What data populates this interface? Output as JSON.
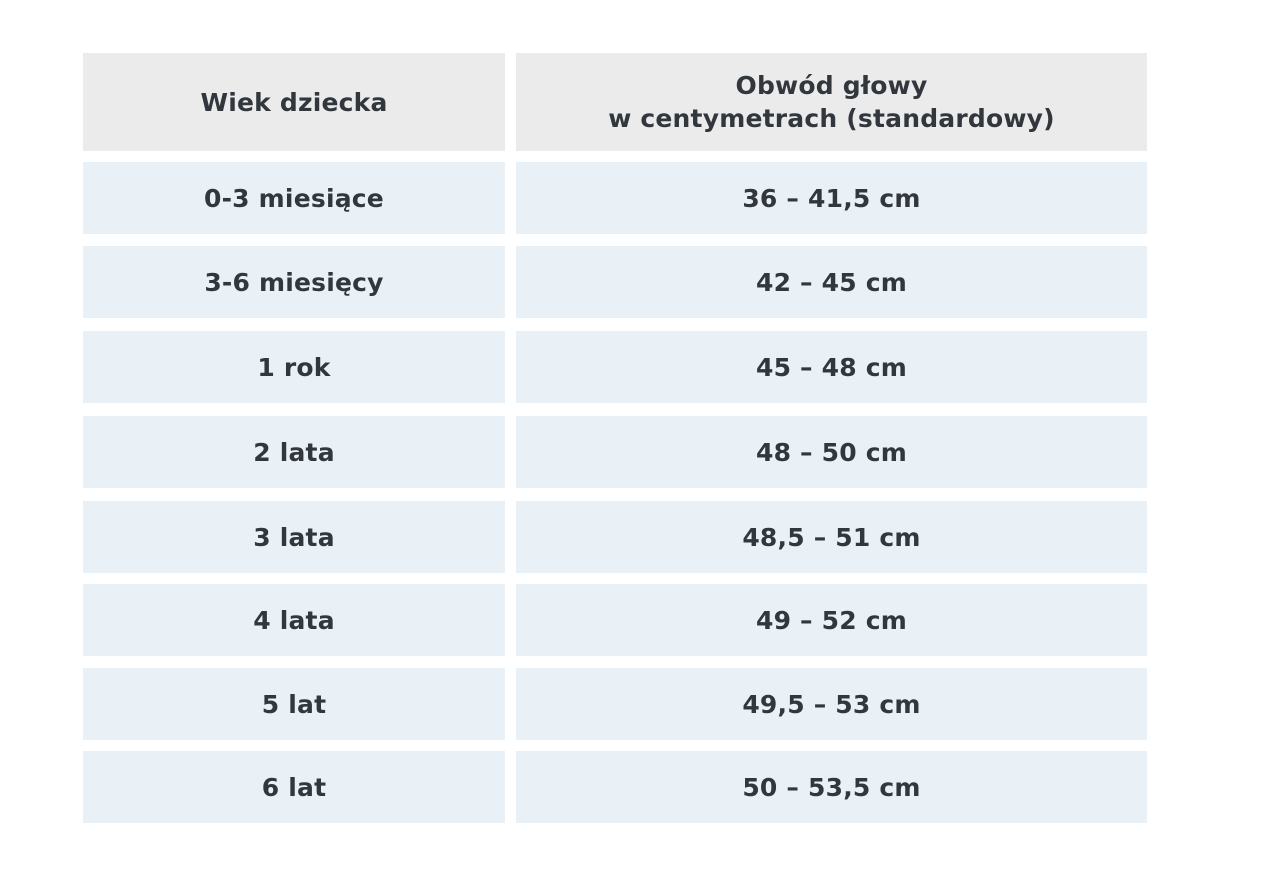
{
  "table": {
    "headers": [
      "Wiek dziecka",
      "Obwód głowy\nw centymetrach (standardowy)"
    ],
    "header_line1": "Obwód głowy",
    "header_line2": "w centymetrach (standardowy)",
    "rows": [
      {
        "age": "0-3 miesiące",
        "range": "36 – 41,5 cm"
      },
      {
        "age": "3-6 miesięcy",
        "range": "42 – 45 cm"
      },
      {
        "age": "1 rok",
        "range": "45 – 48 cm"
      },
      {
        "age": "2 lata",
        "range": "48 – 50 cm"
      },
      {
        "age": "3 lata",
        "range": "48,5 – 51 cm"
      },
      {
        "age": "4 lata",
        "range": "49 – 52 cm"
      },
      {
        "age": "5 lat",
        "range": "49,5 – 53 cm"
      },
      {
        "age": "6 lat",
        "range": "50 – 53,5 cm"
      }
    ]
  },
  "colors": {
    "header_bg": "#ebebeb",
    "row_bg": "#e9f1f7",
    "text": "#31373d"
  }
}
